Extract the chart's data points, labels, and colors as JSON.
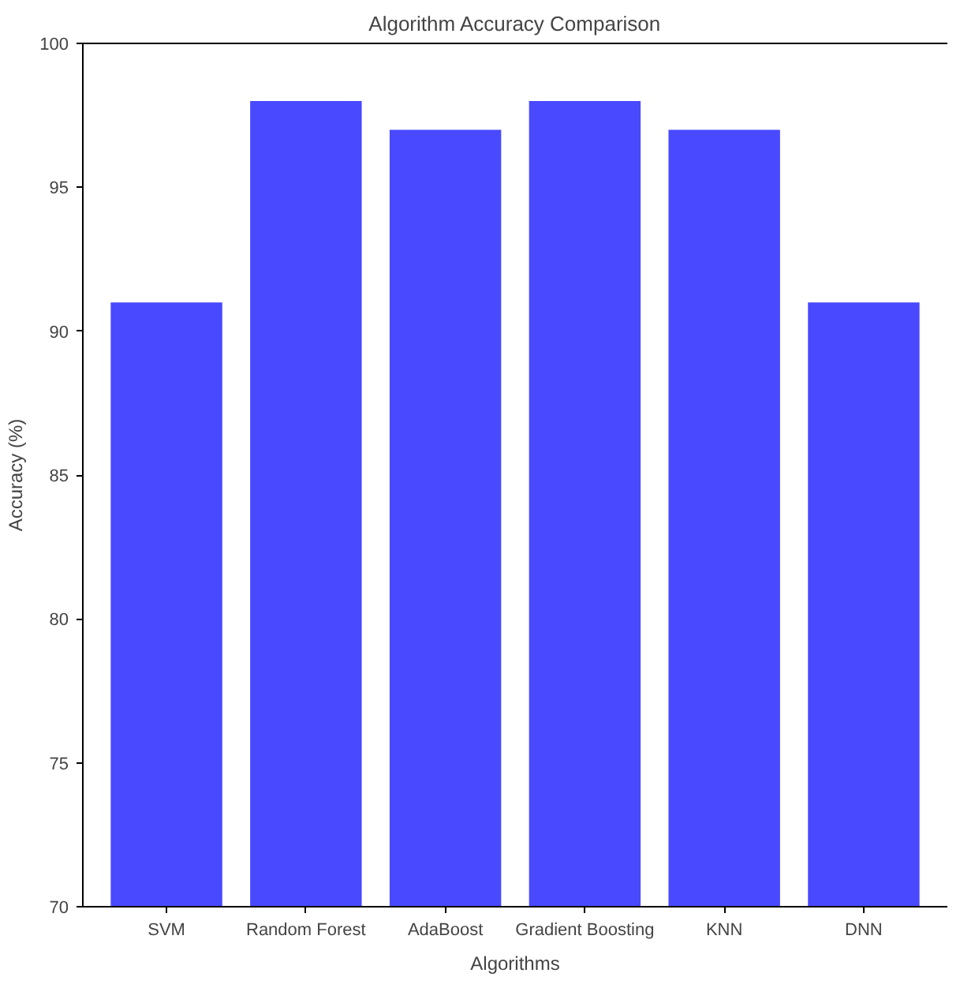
{
  "chart_data": {
    "type": "bar",
    "title": "Algorithm Accuracy Comparison",
    "xlabel": "Algorithms",
    "ylabel": "Accuracy (%)",
    "categories": [
      "SVM",
      "Random Forest",
      "AdaBoost",
      "Gradient Boosting",
      "KNN",
      "DNN"
    ],
    "values": [
      91,
      98,
      97,
      98,
      97,
      91
    ],
    "color": "#4949ff",
    "ylim": [
      70,
      100
    ],
    "yticks": [
      70,
      75,
      80,
      85,
      90,
      95,
      100
    ],
    "grid": false
  }
}
